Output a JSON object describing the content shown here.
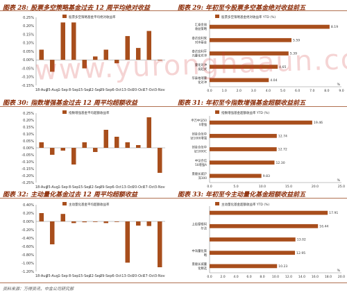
{
  "watermark": "www.yuronghaaun.com",
  "source": "资料来源：万得资讯，中金公司研究部",
  "colors": {
    "bar": "#a84e1c",
    "title": "#8b2a05",
    "grid": "#999999"
  },
  "chart_data": [
    {
      "type": "bar",
      "title": "股票多空策略基金过去 12 周平均绝对收益",
      "index": "图表 28:",
      "legend": "股票多空策略基金平均绝对收益率",
      "categories": [
        "18-Aug",
        "25-Aug",
        "1-Sep",
        "8-Sep",
        "15-Sep",
        "22-Sep",
        "29-Sep",
        "6-Oct",
        "13-Oct",
        "20-Oct",
        "27-Oct",
        "3-Nov"
      ],
      "values": [
        0.06,
        -0.07,
        0.22,
        0.22,
        -0.05,
        0.02,
        0.06,
        -0.02,
        0.14,
        0.07,
        0.17,
        0.0
      ],
      "ylim": [
        -0.15,
        0.25
      ],
      "yticks": [
        "-0.15%",
        "-0.10%",
        "-0.05%",
        "0.00%",
        "0.05%",
        "0.10%",
        "0.15%",
        "0.20%",
        "0.25%"
      ]
    },
    {
      "type": "bar-horizontal",
      "title": "年初至今股票多空基金绝对收益前五",
      "index": "图表 29:",
      "legend": "股票多空策略基金绝对收益率 YTD (%)",
      "categories": [
        "汇泰金丽\n收益策略",
        "泰达宏利家\n对冲基金",
        "泰达宏利平\n元量化对冲",
        "量化对冲\n发起式",
        "华泰柏瑞量\n化对冲"
      ],
      "values": [
        8.19,
        5.59,
        5.39,
        4.65,
        4.04
      ],
      "labels": [
        "8.19",
        "5.59",
        "5.39",
        "4.65",
        "4.04"
      ],
      "xlim": [
        0,
        9
      ],
      "xticks": [
        "0.0",
        "1.0",
        "2.0",
        "3.0",
        "4.0",
        "5.0",
        "6.0",
        "7.0",
        "8.0",
        "9.0"
      ],
      "unit": "%"
    },
    {
      "type": "bar",
      "title": "指数增强基金过去 12 周平均超额收益",
      "index": "图表 30:",
      "legend": "指数增强基金平均超额收益率",
      "categories": [
        "18-Aug",
        "25-Aug",
        "1-Sep",
        "8-Sep",
        "15-Sep",
        "22-Sep",
        "29-Sep",
        "6-Oct",
        "13-Oct",
        "20-Oct",
        "27-Oct",
        "3-Nov"
      ],
      "values": [
        0.04,
        -0.05,
        -0.02,
        -0.12,
        0.04,
        -0.03,
        0.13,
        0.08,
        0.04,
        0.02,
        0.22,
        -0.18
      ],
      "ylim": [
        -0.25,
        0.25
      ],
      "yticks": [
        "-0.25%",
        "-0.20%",
        "-0.15%",
        "-0.10%",
        "-0.05%",
        "0.00%",
        "0.05%",
        "0.10%",
        "0.15%",
        "0.20%",
        "0.25%"
      ]
    },
    {
      "type": "bar-horizontal",
      "title": "年初至今指数增强基金超额收益前五",
      "index": "图表 31:",
      "legend": "指数增强基金超额收益率 YTD (%)",
      "categories": [
        "申万中证50\n0增强",
        "创金合信中\n证1000增强",
        "创金合信中\n证1000C",
        "中证合信\n50增强A",
        "景顺长城沪\n深300"
      ],
      "values": [
        19.46,
        12.74,
        12.72,
        12.3,
        9.83
      ],
      "labels": [
        "19.46",
        "12.74",
        "12.72",
        "12.30",
        "9.83"
      ],
      "xlim": [
        0,
        25
      ],
      "xticks": [
        "0.0",
        "5.0",
        "10.0",
        "15.0",
        "20.0",
        "25.0"
      ],
      "unit": "%"
    },
    {
      "type": "bar",
      "title": "主动量化基金过去 12 周平均超额收益",
      "index": "图表 32:",
      "legend": "主动量化基金平均超额收益率",
      "categories": [
        "18-Aug",
        "25-Aug",
        "1-Sep",
        "8-Sep",
        "15-Sep",
        "22-Sep",
        "29-Sep",
        "6-Oct",
        "13-Oct",
        "20-Oct",
        "27-Oct",
        "3-Nov"
      ],
      "values": [
        0.2,
        -0.55,
        0.18,
        -0.04,
        -0.02,
        -0.01,
        -0.04,
        -0.01,
        -0.99,
        -0.1,
        -0.11,
        -1.1
      ],
      "ylim": [
        -1.2,
        0.4
      ],
      "yticks": [
        "-1.20%",
        "-1.00%",
        "-0.80%",
        "-0.60%",
        "-0.40%",
        "-0.20%",
        "0.00%",
        "0.20%",
        "0.40%"
      ]
    },
    {
      "type": "bar-horizontal",
      "title": "年初至今主动量化基金超额收益前五",
      "index": "图表 33:",
      "legend": "主动量化基金超额收益率 YTD (%)",
      "categories": [
        "",
        "上投摩根阿\n尔法",
        "",
        "中海量化策\n略",
        "景顺长城量\n化精选"
      ],
      "values": [
        17.91,
        16.44,
        13.02,
        12.95,
        10.23
      ],
      "labels": [
        "17.91",
        "16.44",
        "13.02",
        "12.95",
        "10.23"
      ],
      "xlim": [
        0,
        20
      ],
      "xticks": [
        "0.0",
        "2.0",
        "4.0",
        "6.0",
        "8.0",
        "10.0",
        "12.0",
        "14.0",
        "16.0",
        "18.0",
        "20.0"
      ],
      "unit": "%"
    }
  ]
}
